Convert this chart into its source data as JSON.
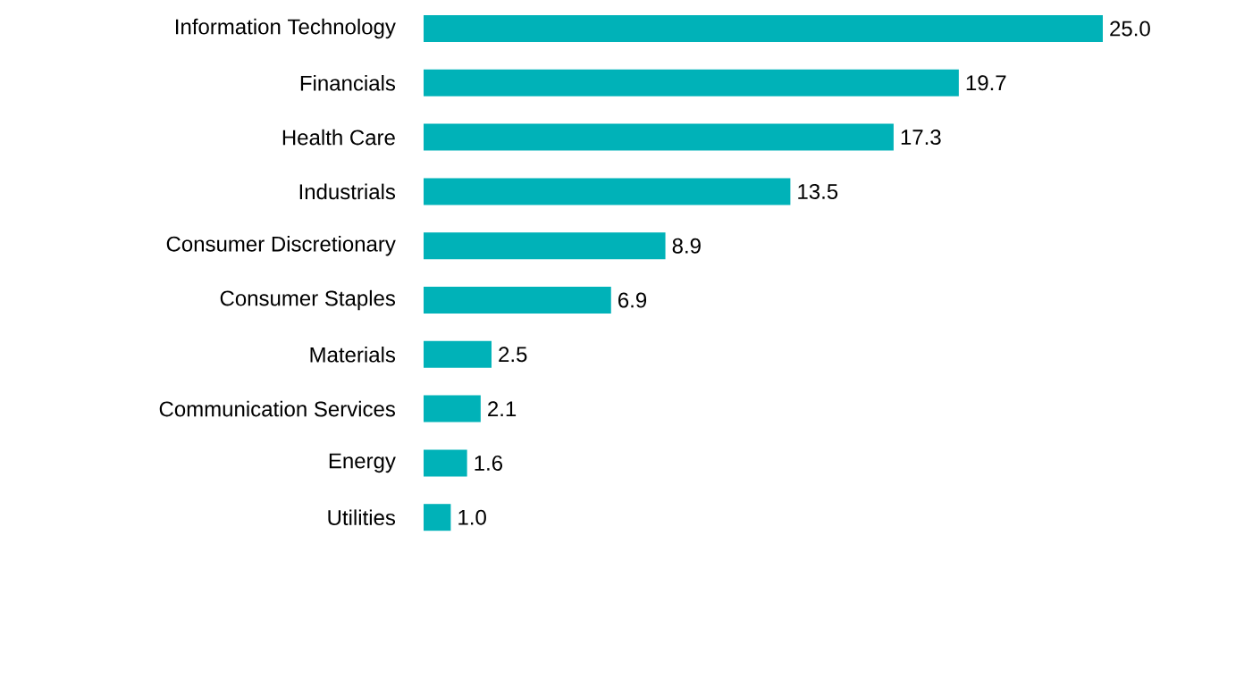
{
  "chart_data": {
    "type": "bar",
    "orientation": "horizontal",
    "categories": [
      "Information Technology",
      "Financials",
      "Health Care",
      "Industrials",
      "Consumer Discretionary",
      "Consumer Staples",
      "Materials",
      "Communication Services",
      "Energy",
      "Utilities"
    ],
    "values": [
      25.0,
      19.7,
      17.3,
      13.5,
      8.9,
      6.9,
      2.5,
      2.1,
      1.6,
      1.0
    ],
    "color": "#00b2b8",
    "value_labels": [
      "25.0",
      "19.7",
      "17.3",
      "13.5",
      "8.9",
      "6.9",
      "2.5",
      "2.1",
      "1.6",
      "1.0"
    ]
  }
}
